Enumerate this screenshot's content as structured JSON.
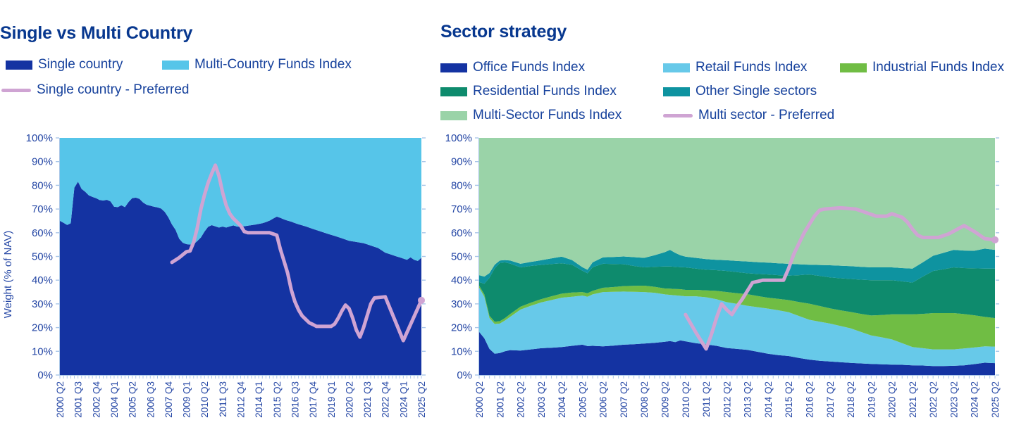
{
  "colors": {
    "dark_blue": "#1433a2",
    "light_blue": "#56c5e9",
    "retail_blue": "#67c9e9",
    "industrial_green": "#70bd44",
    "residential_teal": "#0e8b6d",
    "other_teal": "#0e93a0",
    "multi_sector_green": "#9ad3a8",
    "preferred_pink": "#cfa4d3",
    "title_navy": "#08388f",
    "label_blue": "#2547a5",
    "tick_blue": "#a9c6e8"
  },
  "chart_data": [
    {
      "type": "area",
      "subtype": "stacked-area-with-line",
      "title": "Single vs Multi Country",
      "y_axis_title": "Weight (% of NAV)",
      "y_ticks": [
        "100%",
        "90%",
        "80%",
        "70%",
        "60%",
        "50%",
        "40%",
        "30%",
        "20%",
        "10%",
        "0%"
      ],
      "ylim": [
        0,
        100
      ],
      "grid": false,
      "legend_position": "top",
      "legend": [
        {
          "label": "Single country",
          "color": "#1433a2",
          "type": "area"
        },
        {
          "label": "Multi-Country Funds Index",
          "color": "#56c5e9",
          "type": "area"
        },
        {
          "label": "Single country - Preferred",
          "color": "#cfa4d3",
          "type": "line"
        }
      ],
      "x_axis": {
        "unit": "quarter",
        "total_quarters": 100,
        "label_every_quarters": 5,
        "tick_labels": [
          "2000 Q2",
          "2001 Q3",
          "2002 Q4",
          "2004 Q1",
          "2005 Q2",
          "2006 Q3",
          "2007 Q4",
          "2009 Q1",
          "2010 Q2",
          "2011 Q3",
          "2012 Q4",
          "2014 Q1",
          "2015 Q2",
          "2016 Q3",
          "2017 Q4",
          "2019 Q1",
          "2020 Q2",
          "2021 Q3",
          "2022 Q4",
          "2024 Q1",
          "2025 Q2"
        ]
      },
      "grid_quarters": [
        0,
        1,
        2,
        3,
        4,
        5,
        6,
        7,
        8,
        9,
        10,
        11,
        12,
        13,
        14,
        15,
        16,
        17,
        18,
        19,
        20,
        21,
        22,
        23,
        24,
        25,
        26,
        27,
        28,
        29,
        30,
        31,
        32,
        33,
        34,
        35,
        36,
        37,
        38,
        39,
        40,
        41,
        42,
        44,
        45,
        46,
        47,
        48,
        49,
        50,
        52,
        54,
        56,
        57,
        58,
        59,
        60,
        61,
        62,
        63,
        64,
        65,
        66,
        68,
        70,
        72,
        74,
        75,
        76,
        78,
        80,
        82,
        84,
        85,
        86,
        87,
        88,
        89,
        90,
        91,
        92,
        93,
        94,
        95,
        96,
        97,
        98,
        99,
        100
      ],
      "series": [
        {
          "name": "Single country",
          "color": "#1433a2",
          "values": [
            65,
            64.2,
            63.3,
            64,
            79,
            81.5,
            78.5,
            77.3,
            75.8,
            75.1,
            74.6,
            73.8,
            73.6,
            73.9,
            73.2,
            71,
            70.8,
            71.6,
            70.8,
            73,
            74.6,
            74.8,
            74.3,
            72.8,
            71.8,
            71.4,
            71,
            70.7,
            70.2,
            68.8,
            66.5,
            63.5,
            61.2,
            57.5,
            55.8,
            55.2,
            55,
            55.1,
            56.5,
            58,
            60.5,
            62.5,
            63.2,
            62.2,
            62.6,
            62.2,
            62.7,
            63.1,
            62.6,
            62.5,
            63,
            63.4,
            64,
            64.5,
            65.1,
            66,
            66.8,
            66.3,
            65.6,
            65.1,
            64.7,
            64.1,
            63.6,
            62.7,
            61.6,
            60.6,
            59.6,
            59.1,
            58.7,
            57.7,
            56.6,
            56.1,
            55.6,
            55.1,
            54.6,
            54.1,
            53.6,
            52.6,
            51.6,
            51.1,
            50.6,
            50.1,
            49.6,
            49.1,
            48.6,
            49.6,
            48.6,
            48.1,
            49.5
          ]
        },
        {
          "name": "Multi-Country Funds Index",
          "color": "#56c5e9",
          "complement_to_100": true,
          "fill_to_top": true,
          "values": null
        }
      ],
      "line": {
        "name": "Single country - Preferred",
        "color": "#cfa4d3",
        "width": 5,
        "end_marker": true,
        "points": [
          [
            31,
            47.5
          ],
          [
            33,
            49.5
          ],
          [
            35,
            52
          ],
          [
            36,
            52.3
          ],
          [
            37,
            56
          ],
          [
            38,
            62
          ],
          [
            39,
            70
          ],
          [
            40,
            76
          ],
          [
            41,
            81
          ],
          [
            42,
            85
          ],
          [
            43,
            88.5
          ],
          [
            44,
            84
          ],
          [
            45,
            77
          ],
          [
            46,
            71.5
          ],
          [
            47,
            68
          ],
          [
            48,
            66
          ],
          [
            49,
            64.5
          ],
          [
            50,
            63
          ],
          [
            51,
            60.5
          ],
          [
            52,
            60
          ],
          [
            58,
            60
          ],
          [
            60,
            59
          ],
          [
            61,
            53
          ],
          [
            62,
            48
          ],
          [
            63,
            43
          ],
          [
            64,
            36
          ],
          [
            65,
            31
          ],
          [
            66,
            27.5
          ],
          [
            67,
            25
          ],
          [
            68,
            23.5
          ],
          [
            69,
            22
          ],
          [
            70,
            21.3
          ],
          [
            71,
            20.5
          ],
          [
            75,
            20.5
          ],
          [
            76,
            21.5
          ],
          [
            77,
            24
          ],
          [
            78,
            27
          ],
          [
            79,
            29.5
          ],
          [
            80,
            28
          ],
          [
            81,
            24
          ],
          [
            82,
            19
          ],
          [
            83,
            16
          ],
          [
            84,
            20
          ],
          [
            85,
            25
          ],
          [
            86,
            30
          ],
          [
            87,
            32.5
          ],
          [
            90,
            33
          ],
          [
            95,
            14.5
          ],
          [
            100,
            31.5
          ]
        ]
      }
    },
    {
      "type": "area",
      "subtype": "stacked-area-with-line",
      "title": "Sector strategy",
      "y_axis_title": "",
      "y_ticks": [
        "100%",
        "90%",
        "80%",
        "70%",
        "60%",
        "50%",
        "40%",
        "30%",
        "20%",
        "10%",
        "0%"
      ],
      "ylim": [
        0,
        100
      ],
      "grid": false,
      "legend_position": "top",
      "legend": [
        {
          "label": "Office Funds Index",
          "color": "#1433a2",
          "type": "area"
        },
        {
          "label": "Retail Funds Index",
          "color": "#67c9e9",
          "type": "area"
        },
        {
          "label": "Industrial Funds Index",
          "color": "#70bd44",
          "type": "area"
        },
        {
          "label": "Residential Funds Index",
          "color": "#0e8b6d",
          "type": "area"
        },
        {
          "label": "Other Single sectors",
          "color": "#0e93a0",
          "type": "area"
        },
        {
          "label": "Multi-Sector Funds Index",
          "color": "#9ad3a8",
          "type": "area"
        },
        {
          "label": "Multi sector - Preferred",
          "color": "#cfa4d3",
          "type": "line"
        }
      ],
      "x_axis": {
        "unit": "quarter",
        "total_quarters": 100,
        "label_every_quarters": 4,
        "tick_labels": [
          "2000 Q2",
          "2001 Q2",
          "2002 Q2",
          "2003 Q2",
          "2004 Q2",
          "2005 Q2",
          "2006 Q2",
          "2007 Q2",
          "2008 Q2",
          "2009 Q2",
          "2010 Q2",
          "2011 Q2",
          "2012 Q2",
          "2013 Q2",
          "2014 Q2",
          "2015 Q2",
          "2016 Q2",
          "2017 Q2",
          "2018 Q2",
          "2019 Q2",
          "2020 Q2",
          "2021 Q2",
          "2022 Q2",
          "2023 Q2",
          "2024 Q2",
          "2025 Q2"
        ]
      },
      "grid_quarters": [
        0,
        1,
        2,
        3,
        4,
        5,
        6,
        8,
        10,
        12,
        14,
        16,
        18,
        20,
        21,
        22,
        24,
        26,
        28,
        30,
        32,
        34,
        36,
        37,
        38,
        39,
        40,
        42,
        44,
        46,
        48,
        50,
        52,
        54,
        56,
        58,
        60,
        62,
        64,
        66,
        68,
        70,
        72,
        74,
        76,
        78,
        80,
        82,
        84,
        86,
        88,
        90,
        92,
        94,
        96,
        98,
        100
      ],
      "series": [
        {
          "name": "Office Funds Index",
          "color": "#1433a2",
          "values": [
            18.2,
            15.5,
            11,
            9,
            9.3,
            10,
            10.5,
            10.3,
            10.8,
            11.3,
            11.5,
            11.8,
            12.3,
            12.8,
            12.2,
            12.3,
            12.1,
            12.4,
            12.8,
            13,
            13.3,
            13.6,
            14,
            14.3,
            13.9,
            14.6,
            14.2,
            13.4,
            12.9,
            12.3,
            11.4,
            11,
            10.6,
            9.8,
            9,
            8.4,
            8,
            7.2,
            6.5,
            6,
            5.7,
            5.4,
            5.1,
            4.9,
            4.7,
            4.5,
            4.4,
            4.3,
            4.1,
            4,
            3.8,
            3.8,
            3.9,
            4.1,
            4.6,
            5.2,
            5
          ]
        },
        {
          "name": "Retail Funds Index",
          "color": "#67c9e9",
          "values": [
            18.6,
            17.5,
            13,
            12.5,
            12.4,
            13,
            14,
            17.3,
            18.4,
            19.3,
            20.1,
            20.8,
            20.7,
            20.7,
            20.8,
            21.7,
            22.9,
            22.7,
            22.4,
            22.1,
            21.7,
            21.1,
            20,
            19.5,
            19.7,
            18.8,
            19,
            19.8,
            19.9,
            19.7,
            19.3,
            19,
            18.6,
            18.8,
            19,
            18.9,
            18.5,
            17.7,
            16.8,
            16.5,
            16,
            15.3,
            14.6,
            13.3,
            12,
            11.4,
            10.6,
            9.1,
            7.7,
            7.3,
            7,
            7,
            6.9,
            7.1,
            7,
            6.9,
            7
          ]
        },
        {
          "name": "Industrial Funds Index",
          "color": "#70bd44",
          "values": [
            0.9,
            1,
            1,
            1,
            1,
            1,
            1.2,
            1.2,
            1.3,
            1.4,
            1.6,
            1.7,
            1.8,
            1.5,
            1.5,
            1.5,
            1.8,
            2,
            2.3,
            2.5,
            2.7,
            2.5,
            2.5,
            2.6,
            2.7,
            2.8,
            2.7,
            2.7,
            2.9,
            3.5,
            4.3,
            4.5,
            4.9,
            4.7,
            4.6,
            4.8,
            5.1,
            5.9,
            6.8,
            6.6,
            6.4,
            6.6,
            6.9,
            7.6,
            8.4,
            9.4,
            10.6,
            12.2,
            13.8,
            14.5,
            15.3,
            15.3,
            15.3,
            14.5,
            13.6,
            12.4,
            12
          ]
        },
        {
          "name": "Residential Funds Index",
          "color": "#0e8b6d",
          "values": [
            1.5,
            4.5,
            16,
            22.5,
            24.6,
            23.5,
            21.3,
            16.6,
            15.5,
            14.4,
            13.6,
            12.8,
            11.7,
            9,
            8.4,
            10,
            10.1,
            9.7,
            9.2,
            8.4,
            7.7,
            8.4,
            9.3,
            9.4,
            9.3,
            9.3,
            9.5,
            9,
            8.7,
            8.7,
            8.9,
            8.9,
            8.8,
            9.3,
            9.8,
            10,
            10.3,
            11.3,
            12.3,
            12.7,
            13.1,
            13.5,
            13.9,
            14.4,
            14.9,
            14.7,
            14.4,
            13.9,
            13.4,
            15.7,
            17.8,
            18.5,
            19.3,
            19.4,
            19.8,
            20.4,
            20.9
          ]
        },
        {
          "name": "Other Single sectors",
          "color": "#0e93a0",
          "values": [
            2.9,
            3,
            2,
            1.5,
            1,
            1,
            1.3,
            1.5,
            1.7,
            2,
            2.4,
            2.8,
            2,
            1.5,
            1.5,
            2,
            2.7,
            3,
            3.3,
            3.7,
            4,
            4.9,
            6,
            7,
            5.9,
            5,
            4.5,
            4.5,
            4.5,
            4.4,
            4.5,
            4.7,
            5,
            5,
            5,
            5,
            5,
            4.6,
            4.1,
            4.6,
            5.1,
            5.3,
            5.4,
            5.4,
            5.4,
            5.4,
            5.4,
            5.6,
            5.9,
            6,
            6.4,
            6.9,
            7.4,
            7.4,
            7.4,
            8.4,
            7.9
          ]
        },
        {
          "name": "Multi-Sector Funds Index",
          "color": "#9ad3a8",
          "complement_to_100": true,
          "fill_to_top": true,
          "values": null
        }
      ],
      "line": {
        "name": "Multi sector - Preferred",
        "color": "#cfa4d3",
        "width": 5,
        "end_marker": true,
        "points": [
          [
            40,
            25.5
          ],
          [
            42,
            18
          ],
          [
            44,
            11
          ],
          [
            45,
            17
          ],
          [
            46,
            24
          ],
          [
            47,
            30
          ],
          [
            48,
            27.5
          ],
          [
            49,
            25.5
          ],
          [
            50,
            29
          ],
          [
            51,
            32
          ],
          [
            52,
            35.5
          ],
          [
            53,
            39
          ],
          [
            54,
            39.5
          ],
          [
            55,
            40
          ],
          [
            59,
            40
          ],
          [
            60,
            45
          ],
          [
            61,
            51
          ],
          [
            62,
            55.5
          ],
          [
            63,
            60
          ],
          [
            64,
            63.5
          ],
          [
            65,
            67
          ],
          [
            66,
            69.5
          ],
          [
            67,
            70
          ],
          [
            70,
            70.5
          ],
          [
            73,
            70
          ],
          [
            75,
            68.5
          ],
          [
            77,
            67
          ],
          [
            79,
            67
          ],
          [
            80,
            68
          ],
          [
            82,
            66.5
          ],
          [
            83,
            64.5
          ],
          [
            84,
            61.5
          ],
          [
            85,
            59
          ],
          [
            86,
            58
          ],
          [
            89,
            58
          ],
          [
            91,
            59.5
          ],
          [
            94,
            63
          ],
          [
            96,
            60.5
          ],
          [
            98,
            57.5
          ],
          [
            100,
            57
          ]
        ]
      }
    }
  ]
}
